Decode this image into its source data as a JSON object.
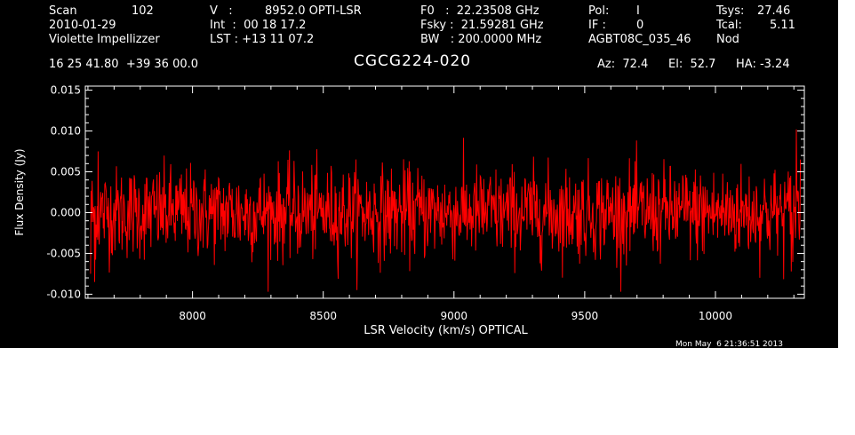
{
  "header": {
    "scan_label": "Scan",
    "scan_number": "102",
    "date": "2010-01-29",
    "observer": "Violette Impellizzer",
    "velocity_label": "V   :",
    "velocity_value": "8952.0 OPTI-LSR",
    "integration": "Int  :  00 18 17.2",
    "lst": "LST : +13 11 07.2",
    "f0": "F0   :  22.23508 GHz",
    "fsky": "Fsky :  21.59281 GHz",
    "bw": "BW   : 200.0000 MHz",
    "pol_label": "Pol:",
    "pol_value": "I",
    "if_label": "IF :",
    "if_value": "0",
    "project": "AGBT08C_035_46",
    "tsys_label": "Tsys:",
    "tsys_value": "27.46",
    "tcal_label": "Tcal:",
    "tcal_value": "5.11",
    "procedure": "Nod",
    "coords": "16 25 41.80  +39 36 00.0",
    "source": "CGCG224-020",
    "az": "Az:  72.4",
    "el": "El:  52.7",
    "ha": "HA: -3.24"
  },
  "footer": {
    "timestamp": "Mon May  6 21:36:51 2013"
  },
  "chart_data": {
    "type": "line",
    "title": "CGCG224-020",
    "xlabel": "LSR Velocity (km/s) OPTICAL",
    "ylabel": "Flux Density (Jy)",
    "xlim": [
      7590,
      10340
    ],
    "ylim": [
      -0.0105,
      0.0155
    ],
    "xticks": [
      8000,
      8500,
      9000,
      9500,
      10000
    ],
    "xtick_labels": [
      "8000",
      "8500",
      "9000",
      "9500",
      "10000"
    ],
    "yticks": [
      -0.01,
      -0.005,
      0.0,
      0.005,
      0.01,
      0.015
    ],
    "ytick_labels": [
      "-0.010",
      "-0.005",
      "0.000",
      "0.005",
      "0.010",
      "0.015"
    ],
    "x_range": [
      7610,
      10325
    ],
    "noise_rms": 0.0028,
    "mean": 0.0,
    "edge_points": [
      {
        "x": 7610,
        "y": -0.0075
      },
      {
        "x": 7625,
        "y": -0.0085
      },
      {
        "x": 7640,
        "y": 0.0075
      },
      {
        "x": 10290,
        "y": -0.0072
      },
      {
        "x": 10310,
        "y": 0.0102
      },
      {
        "x": 10325,
        "y": 0.0065
      }
    ],
    "n_points": 1400,
    "grid": false,
    "legend": "none",
    "colors": {
      "background": "#000000",
      "trace": "#ff0000",
      "axes": "#ffffff"
    }
  }
}
